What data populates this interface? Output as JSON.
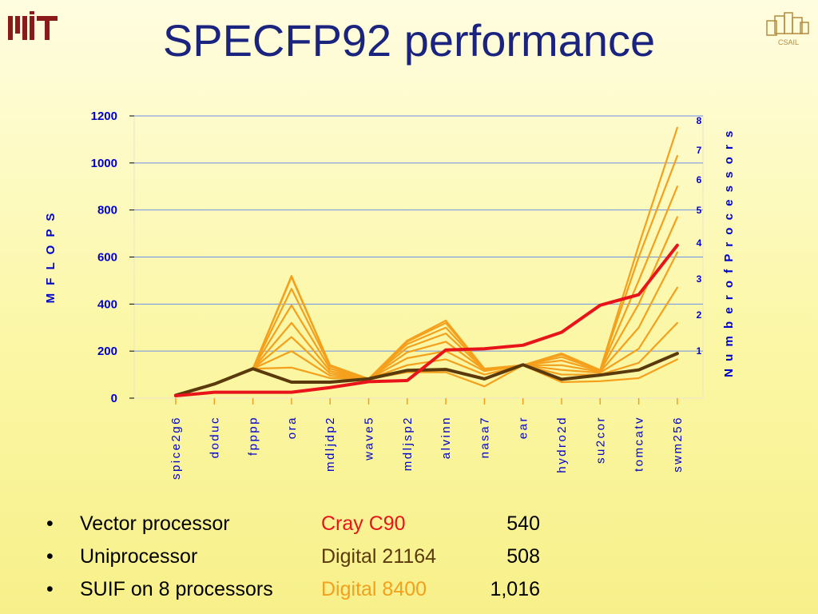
{
  "title": "SPECFP92 performance",
  "logos": {
    "left": "MIT",
    "right": "CSAIL"
  },
  "colors": {
    "title": "#1a237e",
    "axis_text": "#0000cc",
    "grid": "#6f8fe8",
    "cray": "#e8141a",
    "uni": "#5a3a0c",
    "suif": "#f5a01c"
  },
  "chart_data": {
    "type": "line",
    "categories": [
      "spice2g6",
      "doduc",
      "fpppp",
      "ora",
      "mdljdp2",
      "wave5",
      "mdljsp2",
      "alvinn",
      "nasa7",
      "ear",
      "hydro2d",
      "su2cor",
      "tomcatv",
      "swm256"
    ],
    "ylabel": "M F L O P S",
    "right_label": "N u m b e r o f P r o c e s s o r s",
    "ylim": [
      0,
      1200
    ],
    "yticks": [
      0,
      200,
      400,
      600,
      800,
      1000,
      1200
    ],
    "grid": true,
    "processor_labels": [
      "1",
      "2",
      "3",
      "4",
      "5",
      "6",
      "7",
      "8"
    ],
    "series": [
      {
        "name": "",
        "role": "cray",
        "values": [
          10,
          25,
          25,
          25,
          45,
          70,
          75,
          205,
          210,
          225,
          280,
          395,
          440,
          650
        ]
      },
      {
        "name": "",
        "role": "uni",
        "values": [
          12,
          60,
          125,
          68,
          68,
          82,
          118,
          122,
          82,
          142,
          80,
          98,
          120,
          190
        ]
      },
      {
        "name": "1",
        "role": "proc",
        "values": [
          12,
          60,
          125,
          130,
          85,
          82,
          110,
          110,
          50,
          140,
          68,
          72,
          85,
          165
        ]
      },
      {
        "name": "2",
        "role": "proc",
        "values": [
          12,
          60,
          125,
          200,
          95,
          82,
          140,
          165,
          100,
          140,
          100,
          100,
          150,
          320
        ]
      },
      {
        "name": "3",
        "role": "proc",
        "values": [
          12,
          60,
          125,
          260,
          105,
          82,
          170,
          200,
          115,
          140,
          120,
          108,
          210,
          470
        ]
      },
      {
        "name": "4",
        "role": "proc",
        "values": [
          12,
          60,
          125,
          320,
          115,
          82,
          195,
          240,
          120,
          140,
          140,
          112,
          300,
          620
        ]
      },
      {
        "name": "5",
        "role": "proc",
        "values": [
          12,
          60,
          125,
          395,
          125,
          82,
          215,
          275,
          122,
          140,
          160,
          115,
          400,
          770
        ]
      },
      {
        "name": "6",
        "role": "proc",
        "values": [
          12,
          60,
          125,
          465,
          135,
          82,
          230,
          300,
          124,
          140,
          175,
          118,
          500,
          900
        ]
      },
      {
        "name": "7",
        "role": "proc",
        "values": [
          12,
          60,
          125,
          515,
          140,
          82,
          240,
          320,
          125,
          140,
          185,
          119,
          600,
          1030
        ]
      },
      {
        "name": "8",
        "role": "proc",
        "values": [
          12,
          60,
          125,
          520,
          140,
          82,
          245,
          330,
          125,
          140,
          190,
          120,
          650,
          1150
        ]
      }
    ]
  },
  "bullets": [
    {
      "dot": "•",
      "label": "Vector processor",
      "name": "Cray C90",
      "value": "540",
      "color": "#e8141a"
    },
    {
      "dot": "•",
      "label": "Uniprocessor",
      "name": "Digital 21164",
      "value": "508",
      "color": "#5a3a0c"
    },
    {
      "dot": "•",
      "label": "SUIF on 8 processors",
      "name": "Digital 8400",
      "value": "1,016",
      "color": "#f5a01c"
    }
  ]
}
